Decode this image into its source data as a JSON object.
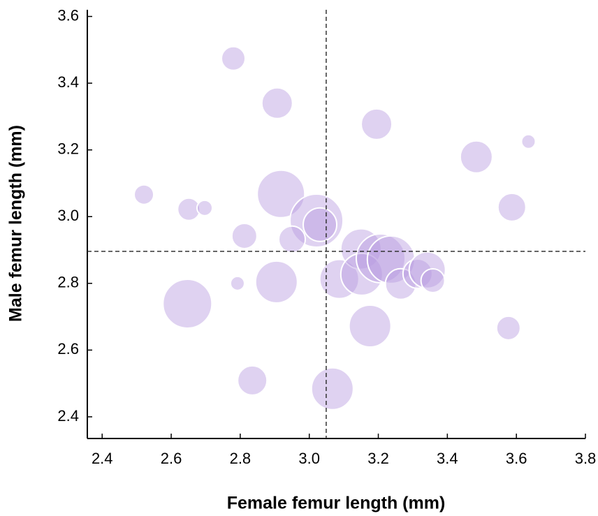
{
  "chart_data": {
    "type": "scatter",
    "x_label": "Female femur length (mm)",
    "y_label": "Male femur length (mm)",
    "color": "#b89be0",
    "x": [
      2.78,
      2.907,
      3.195,
      3.635,
      3.484,
      2.521,
      2.651,
      2.697,
      2.918,
      3.021,
      3.031,
      3.587,
      2.812,
      2.95,
      3.087,
      3.15,
      3.152,
      3.207,
      3.237,
      3.265,
      3.314,
      3.342,
      3.358,
      2.792,
      2.905,
      2.647,
      3.176,
      3.577,
      2.835,
      3.067
    ],
    "y": [
      3.474,
      3.34,
      3.277,
      3.225,
      3.179,
      3.066,
      3.022,
      3.026,
      3.068,
      2.988,
      2.976,
      3.028,
      2.942,
      2.932,
      2.813,
      2.903,
      2.827,
      2.875,
      2.871,
      2.798,
      2.829,
      2.84,
      2.808,
      2.8,
      2.804,
      2.739,
      2.672,
      2.666,
      2.509,
      2.484
    ],
    "sizes": [
      17,
      22,
      22,
      10,
      23,
      14,
      16,
      11,
      34,
      38,
      24,
      20,
      18,
      19,
      28,
      29,
      30,
      35,
      34,
      22,
      21,
      26,
      17,
      10,
      30,
      35,
      30,
      17,
      21,
      30
    ],
    "reference_lines": {
      "x": 3.049,
      "y": 2.896
    },
    "xlim": [
      2.357,
      3.8
    ],
    "ylim": [
      2.335,
      3.62
    ],
    "xticks": [
      2.4,
      2.6,
      2.8,
      {
        "value": 3,
        "label": "3.0"
      },
      3.2,
      3.4,
      3.6,
      3.8
    ],
    "yticks": [
      2.4,
      2.6,
      2.8,
      {
        "value": 3,
        "label": "3.0"
      },
      3.2,
      3.4,
      3.6
    ]
  }
}
